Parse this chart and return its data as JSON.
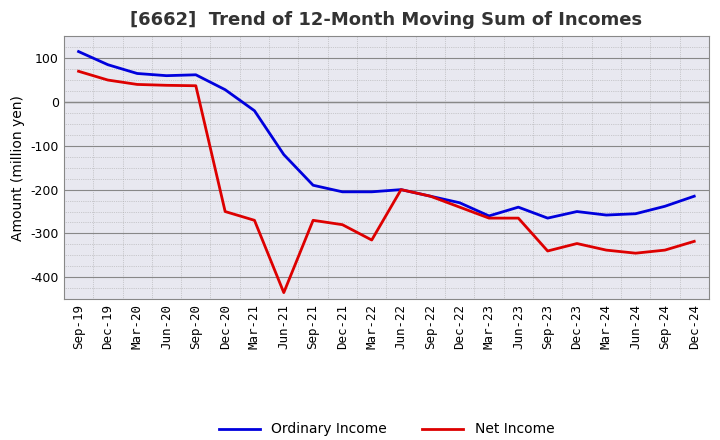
{
  "title": "[6662]  Trend of 12-Month Moving Sum of Incomes",
  "ylabel": "Amount (million yen)",
  "background_color": "#ffffff",
  "plot_bg_color": "#e8e8f0",
  "grid_major_color": "#888888",
  "grid_minor_color": "#aaaaaa",
  "ordinary_income_color": "#0000dd",
  "net_income_color": "#dd0000",
  "ordinary_income_label": "Ordinary Income",
  "net_income_label": "Net Income",
  "x_labels": [
    "Sep-19",
    "Dec-19",
    "Mar-20",
    "Jun-20",
    "Sep-20",
    "Dec-20",
    "Mar-21",
    "Jun-21",
    "Sep-21",
    "Dec-21",
    "Mar-22",
    "Jun-22",
    "Sep-22",
    "Dec-22",
    "Mar-23",
    "Jun-23",
    "Sep-23",
    "Dec-23",
    "Mar-24",
    "Jun-24",
    "Sep-24",
    "Dec-24"
  ],
  "ordinary_income": [
    115,
    85,
    65,
    60,
    62,
    28,
    -20,
    -120,
    -190,
    -205,
    -205,
    -200,
    -215,
    -230,
    -260,
    -240,
    -265,
    -250,
    -258,
    -255,
    -238,
    -215
  ],
  "net_income": [
    70,
    50,
    40,
    38,
    37,
    -250,
    -270,
    -435,
    -270,
    -280,
    -315,
    -200,
    -215,
    -240,
    -265,
    -265,
    -340,
    -323,
    -338,
    -345,
    -338,
    -318
  ],
  "ylim": [
    -450,
    150
  ],
  "yticks": [
    100,
    0,
    -100,
    -200,
    -300,
    -400
  ],
  "title_fontsize": 13,
  "tick_fontsize": 9,
  "ylabel_fontsize": 10,
  "legend_fontsize": 10,
  "linewidth": 2.0
}
